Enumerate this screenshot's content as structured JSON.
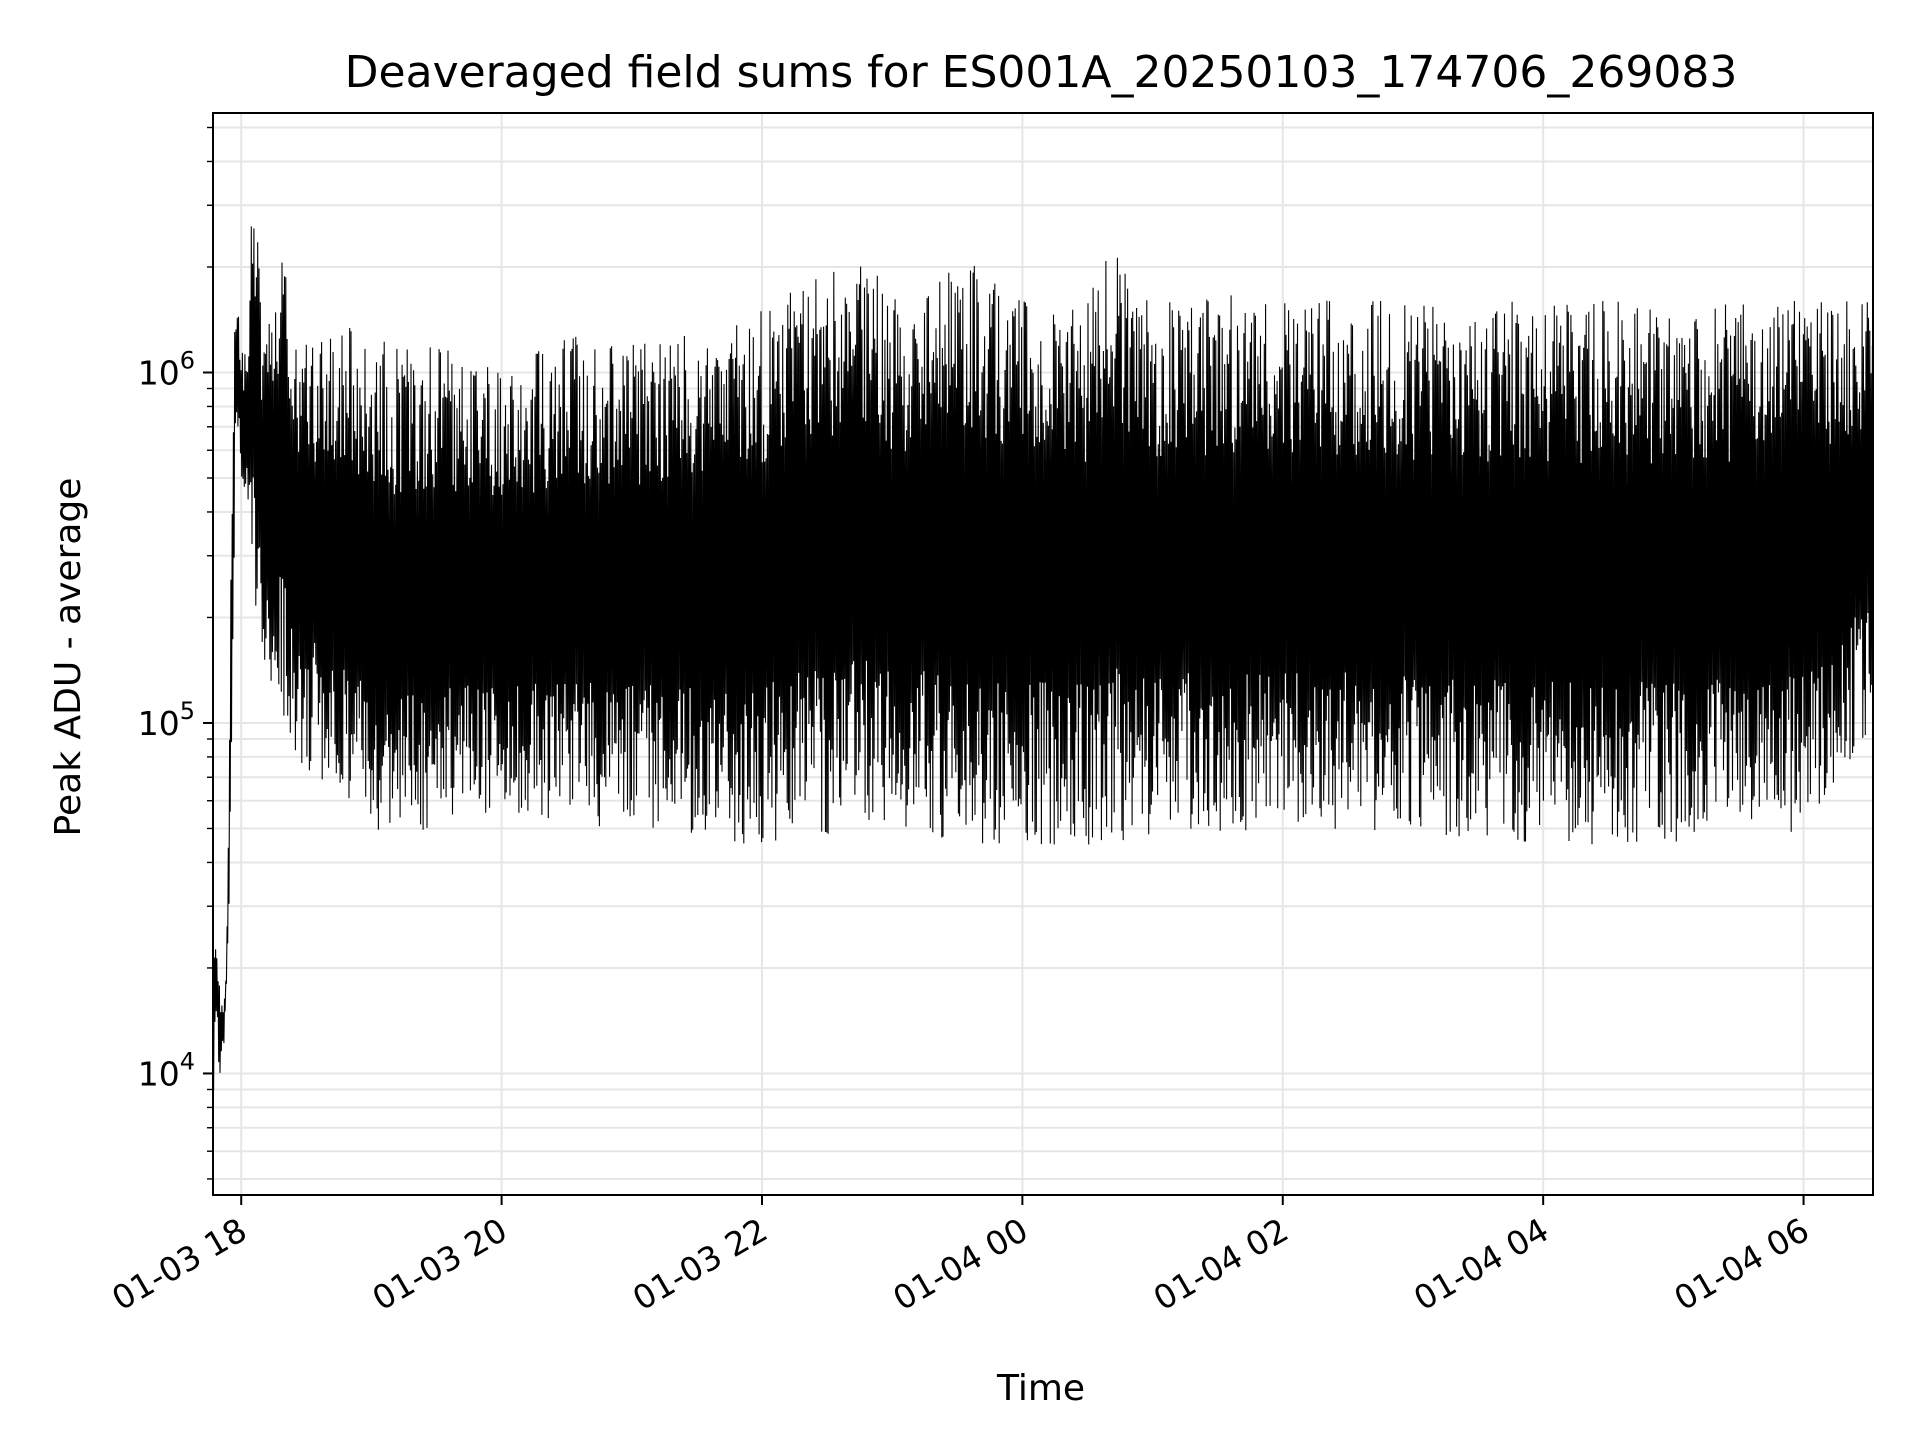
{
  "chart_data": {
    "type": "line",
    "title": "Deaveraged field sums for ES001A_20250103_174706_269083",
    "xlabel": "Time",
    "ylabel": "Peak ADU - average",
    "yscale": "log",
    "ylim": [
      4500,
      5500000
    ],
    "xlim": [
      "2025-01-03 17:47",
      "2025-01-04 06:32"
    ],
    "grid": true,
    "line_color": "#000000",
    "grid_color": "#e6e6e6",
    "x_ticks": [
      {
        "value": "2025-01-03 18:00",
        "label": "01-03 18"
      },
      {
        "value": "2025-01-03 20:00",
        "label": "01-03 20"
      },
      {
        "value": "2025-01-03 22:00",
        "label": "01-03 22"
      },
      {
        "value": "2025-01-04 00:00",
        "label": "01-04 00"
      },
      {
        "value": "2025-01-04 02:00",
        "label": "01-04 02"
      },
      {
        "value": "2025-01-04 04:00",
        "label": "01-04 04"
      },
      {
        "value": "2025-01-04 06:00",
        "label": "01-04 06"
      }
    ],
    "y_ticks": [
      {
        "value": 10000,
        "base": "10",
        "exp": "4"
      },
      {
        "value": 100000,
        "base": "10",
        "exp": "5"
      },
      {
        "value": 1000000,
        "base": "10",
        "exp": "6"
      }
    ],
    "series": [
      {
        "x": [
          "2025-01-03 17:47",
          "2025-01-03 17:48",
          "2025-01-03 17:49",
          "2025-01-03 17:50",
          "2025-01-03 17:51",
          "2025-01-03 17:52",
          "2025-01-03 17:53",
          "2025-01-03 17:54",
          "2025-01-03 17:55",
          "2025-01-03 17:56",
          "2025-01-03 17:57",
          "2025-01-03 17:58",
          "2025-01-03 17:59",
          "2025-01-03 18:00",
          "2025-01-03 18:03",
          "2025-01-03 18:05",
          "2025-01-03 18:10",
          "2025-01-03 18:20",
          "2025-01-03 18:25",
          "2025-01-03 18:45",
          "2025-01-03 19:00",
          "2025-01-03 19:10",
          "2025-01-03 19:30",
          "2025-01-03 20:00",
          "2025-01-03 20:30",
          "2025-01-03 21:00",
          "2025-01-03 21:30",
          "2025-01-03 21:50",
          "2025-01-03 22:00",
          "2025-01-03 22:50",
          "2025-01-03 23:00",
          "2025-01-03 23:30",
          "2025-01-04 00:00",
          "2025-01-04 00:30",
          "2025-01-04 00:40",
          "2025-01-04 01:00",
          "2025-01-04 02:00",
          "2025-01-04 03:00",
          "2025-01-04 04:00",
          "2025-01-04 05:00",
          "2025-01-04 06:00",
          "2025-01-04 06:32"
        ],
        "low": [
          5000,
          13000,
          14000,
          8000,
          11000,
          12000,
          16000,
          25000,
          35000,
          80000,
          500000,
          700000,
          600000,
          500000,
          400000,
          250000,
          150000,
          100000,
          80000,
          60000,
          50000,
          45000,
          50000,
          55000,
          50000,
          50000,
          48000,
          45000,
          45000,
          50000,
          48000,
          45000,
          45000,
          45000,
          45000,
          48000,
          50000,
          48000,
          45000,
          45000,
          48000,
          100000
        ],
        "high": [
          20000,
          24000,
          22000,
          18000,
          16000,
          16000,
          20000,
          40000,
          200000,
          1000000,
          1300000,
          2100000,
          1300000,
          1200000,
          1100000,
          4000000,
          1500000,
          2500000,
          1300000,
          1400000,
          1300000,
          1200000,
          1200000,
          1000000,
          1300000,
          1200000,
          1400000,
          1500000,
          1600000,
          2200000,
          1600000,
          2200000,
          1600000,
          1600000,
          2400000,
          1600000,
          1700000,
          1600000,
          1600000,
          1600000,
          1600000,
          1600000
        ]
      }
    ]
  }
}
